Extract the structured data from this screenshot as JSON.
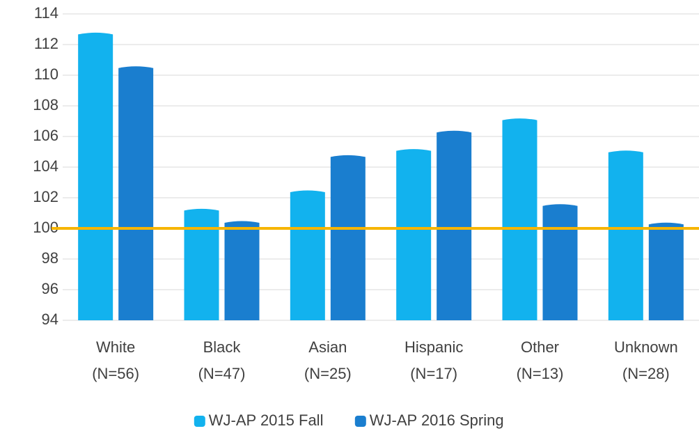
{
  "chart_data": {
    "type": "bar",
    "categories": [
      [
        "White",
        "(N=56)"
      ],
      [
        "Black",
        "(N=47)"
      ],
      [
        "Asian",
        "(N=25)"
      ],
      [
        "Hispanic",
        "(N=17)"
      ],
      [
        "Other",
        "(N=13)"
      ],
      [
        "Unknown",
        "(N=28)"
      ]
    ],
    "series": [
      {
        "name": "WJ-AP 2015 Fall",
        "color": "#12b2ee",
        "values": [
          112.8,
          101.3,
          102.5,
          105.2,
          107.2,
          105.1
        ]
      },
      {
        "name": "WJ-AP 2016 Spring",
        "color": "#1a7ecf",
        "values": [
          110.6,
          100.5,
          104.8,
          106.4,
          101.6,
          100.4
        ]
      }
    ],
    "ylim": [
      94,
      114
    ],
    "yticks": [
      94,
      96,
      98,
      100,
      102,
      104,
      106,
      108,
      110,
      112,
      114
    ],
    "grid": true,
    "reference_line": {
      "value": 100,
      "color": "#f7b500"
    },
    "legend": "bottom"
  }
}
